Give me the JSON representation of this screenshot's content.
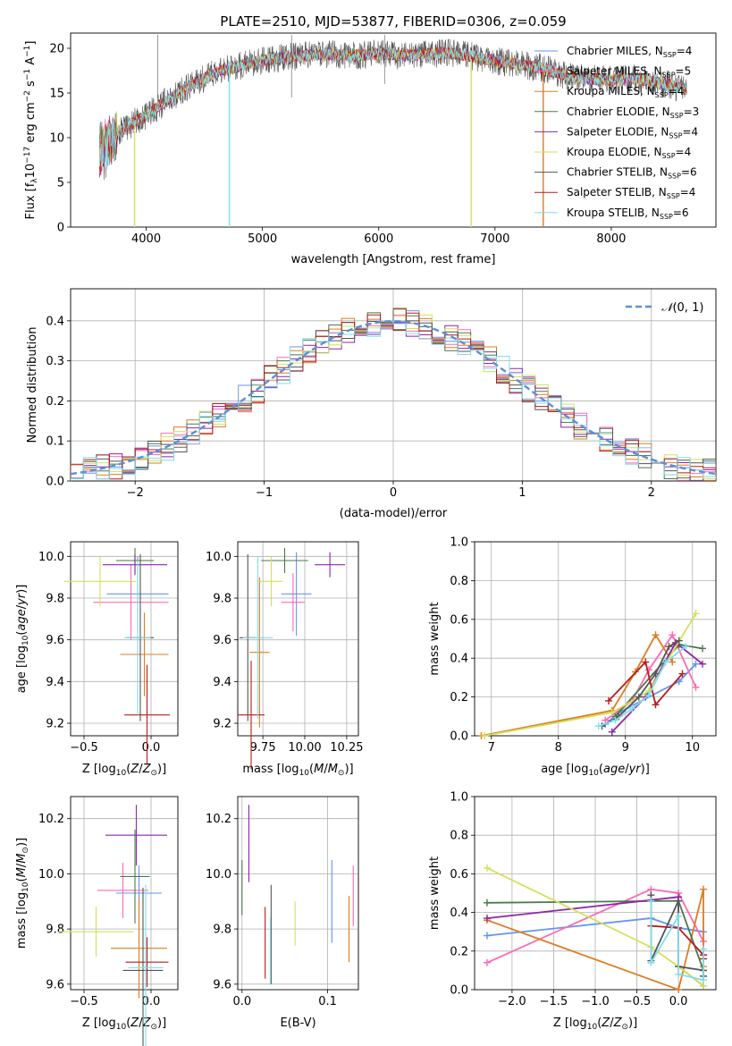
{
  "colors": {
    "c0": "#6495ed",
    "c1": "#ff69b4",
    "c2": "#e07b20",
    "c3": "#4a7a4a",
    "c4": "#8e24aa",
    "c5": "#d4e157",
    "c6": "#555555",
    "c7": "#b71c1c",
    "c8": "#80deea",
    "normal": "#5b8fd6"
  },
  "chart_data": [
    {
      "type": "line",
      "panel": "spectrum",
      "title": "PLATE=2510, MJD=53877, FIBERID=0306, z=0.059",
      "xlabel": "wavelength [Angstrom, rest frame]",
      "ylabel": "Flux [f_λ10^-17 erg cm^-2 s^-1 A^-1]",
      "xlim": [
        3350,
        8900
      ],
      "ylim": [
        0,
        21.7
      ],
      "xticks": [
        4000,
        5000,
        6000,
        7000,
        8000
      ],
      "yticks": [
        0,
        5,
        10,
        15,
        20
      ],
      "continuum": {
        "x": [
          3600,
          3800,
          4000,
          4200,
          4400,
          4600,
          4800,
          5000,
          5200,
          5400,
          5600,
          5800,
          6000,
          6200,
          6400,
          6600,
          6800,
          7000,
          7200,
          7400,
          7600,
          7800,
          8000,
          8200,
          8400,
          8600
        ],
        "y": [
          8.5,
          11.0,
          12.5,
          14.3,
          16.0,
          17.3,
          18.0,
          18.6,
          19.0,
          19.2,
          19.3,
          19.2,
          19.4,
          19.2,
          19.3,
          19.5,
          19.1,
          18.6,
          18.2,
          17.8,
          17.0,
          16.6,
          16.4,
          16.6,
          16.3,
          15.5
        ]
      },
      "legend": [
        {
          "name": "Chabrier MILES",
          "nssp": "4"
        },
        {
          "name": "Salpeter MILES",
          "nssp": "5"
        },
        {
          "name": "Kroupa MILES",
          "nssp": "4"
        },
        {
          "name": "Chabrier ELODIE",
          "nssp": "3"
        },
        {
          "name": "Salpeter ELODIE",
          "nssp": "4"
        },
        {
          "name": "Kroupa ELODIE",
          "nssp": "4"
        },
        {
          "name": "Chabrier STELIB",
          "nssp": "6"
        },
        {
          "name": "Salpeter STELIB",
          "nssp": "4"
        },
        {
          "name": "Kroupa STELIB",
          "nssp": "6"
        }
      ],
      "legend_position": "right"
    },
    {
      "type": "area",
      "panel": "residuals",
      "xlabel": "(data-model)/error",
      "ylabel": "Normed distribution",
      "xlim": [
        -2.5,
        2.5
      ],
      "ylim": [
        0,
        0.48
      ],
      "xticks": [
        -2,
        -1,
        0,
        1,
        2
      ],
      "yticks": [
        0.0,
        0.1,
        0.2,
        0.3,
        0.4
      ],
      "bin_width": 0.1,
      "legend": "N(0,1)",
      "legend_position": "top-right",
      "grid": true
    },
    {
      "type": "scatter",
      "panel": "age-vs-Z",
      "xlabel": "Z [log10(Z/Z⊙)]",
      "ylabel": "age [log10(age/yr)]",
      "xlim": [
        -0.6,
        0.2
      ],
      "ylim": [
        9.14,
        10.07
      ],
      "xticks": [
        -0.5,
        0.0
      ],
      "yticks": [
        9.2,
        9.4,
        9.6,
        9.8,
        10.0
      ],
      "points": [
        {
          "x": -0.1,
          "xerr": 0.23,
          "y": 9.82,
          "yerr": 0.18
        },
        {
          "x": -0.15,
          "xerr": 0.28,
          "y": 9.78,
          "yerr": 0.18
        },
        {
          "x": -0.05,
          "xerr": 0.18,
          "y": 9.53,
          "yerr": 0.2
        },
        {
          "x": -0.12,
          "xerr": 0.14,
          "y": 9.98,
          "yerr": 0.06
        },
        {
          "x": -0.12,
          "xerr": 0.24,
          "y": 9.96,
          "yerr": 0.05
        },
        {
          "x": -0.38,
          "xerr": 0.27,
          "y": 9.88,
          "yerr": 0.12
        },
        {
          "x": -0.08,
          "xerr": 0.1,
          "y": 9.61,
          "yerr": 0.4
        },
        {
          "x": -0.03,
          "xerr": 0.17,
          "y": 9.24,
          "yerr": 0.24
        },
        {
          "x": -0.1,
          "xerr": 0.1,
          "y": 9.61,
          "yerr": 0.37
        }
      ],
      "grid": true
    },
    {
      "type": "scatter",
      "panel": "age-vs-mass",
      "xlabel": "mass [log10(M/M⊙)]",
      "ylabel": "",
      "xlim": [
        9.6,
        10.32
      ],
      "ylim": [
        9.14,
        10.07
      ],
      "xticks": [
        9.75,
        10.0,
        10.25
      ],
      "yticks": [
        9.2,
        9.4,
        9.6,
        9.8,
        10.0
      ],
      "points": [
        {
          "x": 9.95,
          "xerr": 0.09,
          "y": 9.82,
          "yerr": 0.2
        },
        {
          "x": 9.93,
          "xerr": 0.07,
          "y": 9.78,
          "yerr": 0.14
        },
        {
          "x": 9.73,
          "xerr": 0.06,
          "y": 9.54,
          "yerr": 0.36
        },
        {
          "x": 9.88,
          "xerr": 0.14,
          "y": 9.98,
          "yerr": 0.06
        },
        {
          "x": 10.15,
          "xerr": 0.09,
          "y": 9.96,
          "yerr": 0.06
        },
        {
          "x": 9.8,
          "xerr": 0.07,
          "y": 9.88,
          "yerr": 0.12
        },
        {
          "x": 9.66,
          "xerr": 0.05,
          "y": 9.61,
          "yerr": 0.4
        },
        {
          "x": 9.68,
          "xerr": 0.08,
          "y": 9.24,
          "yerr": 0.26
        },
        {
          "x": 9.72,
          "xerr": 0.09,
          "y": 9.61,
          "yerr": 0.39
        }
      ],
      "grid": true
    },
    {
      "type": "line",
      "panel": "mass-weight-vs-age",
      "xlabel": "age [log10(age/yr)]",
      "ylabel": "mass weight",
      "xlim": [
        6.75,
        10.35
      ],
      "ylim": [
        0,
        1
      ],
      "xticks": [
        7,
        8,
        9,
        10
      ],
      "yticks": [
        0.0,
        0.2,
        0.4,
        0.6,
        0.8,
        1.0
      ],
      "series": [
        {
          "x": [
            8.7,
            8.9,
            9.8,
            10.05
          ],
          "y": [
            0.06,
            0.12,
            0.28,
            0.37
          ]
        },
        {
          "x": [
            8.7,
            9.1,
            9.35,
            9.7,
            10.05
          ],
          "y": [
            0.08,
            0.18,
            0.34,
            0.52,
            0.25
          ]
        },
        {
          "x": [
            6.85,
            8.8,
            9.15,
            9.45,
            9.7
          ],
          "y": [
            0.0,
            0.13,
            0.33,
            0.52,
            0.38
          ]
        },
        {
          "x": [
            8.85,
            9.8,
            10.15
          ],
          "y": [
            0.1,
            0.47,
            0.45
          ]
        },
        {
          "x": [
            8.8,
            9.3,
            9.75,
            10.15
          ],
          "y": [
            0.02,
            0.2,
            0.48,
            0.37
          ]
        },
        {
          "x": [
            6.9,
            8.8,
            9.35,
            10.05
          ],
          "y": [
            0.0,
            0.12,
            0.23,
            0.63
          ]
        },
        {
          "x": [
            8.65,
            8.9,
            9.2,
            9.45,
            9.65,
            9.8
          ],
          "y": [
            0.05,
            0.1,
            0.2,
            0.32,
            0.46,
            0.49
          ]
        },
        {
          "x": [
            8.75,
            9.3,
            9.45,
            9.85
          ],
          "y": [
            0.18,
            0.38,
            0.16,
            0.32
          ]
        },
        {
          "x": [
            8.6,
            8.85,
            9.1,
            9.35,
            9.6,
            9.9
          ],
          "y": [
            0.05,
            0.08,
            0.14,
            0.21,
            0.38,
            0.46
          ]
        }
      ],
      "grid": true
    },
    {
      "type": "scatter",
      "panel": "mass-vs-Z",
      "xlabel": "Z [log10(Z/Z⊙)]",
      "ylabel": "mass [log10(M/M⊙)]",
      "xlim": [
        -0.6,
        0.2
      ],
      "ylim": [
        9.58,
        10.28
      ],
      "xticks": [
        -0.5,
        0.0
      ],
      "yticks": [
        9.6,
        9.8,
        10.0,
        10.2
      ],
      "points": [
        {
          "x": -0.09,
          "xerr": 0.17,
          "y": 9.93,
          "yerr": 0.1
        },
        {
          "x": -0.21,
          "xerr": 0.19,
          "y": 9.94,
          "yerr": 0.1
        },
        {
          "x": -0.09,
          "xerr": 0.21,
          "y": 9.73,
          "yerr": 0.18
        },
        {
          "x": -0.12,
          "xerr": 0.11,
          "y": 9.99,
          "yerr": 0.17
        },
        {
          "x": -0.11,
          "xerr": 0.23,
          "y": 10.14,
          "yerr": 0.11
        },
        {
          "x": -0.41,
          "xerr": 0.28,
          "y": 9.79,
          "yerr": 0.09
        },
        {
          "x": -0.06,
          "xerr": 0.15,
          "y": 9.65,
          "yerr": 0.3
        },
        {
          "x": -0.03,
          "xerr": 0.16,
          "y": 9.68,
          "yerr": 0.09
        },
        {
          "x": -0.04,
          "xerr": 0.13,
          "y": 9.66,
          "yerr": 0.3
        }
      ],
      "grid": true
    },
    {
      "type": "scatter",
      "panel": "mass-vs-EBV",
      "xlabel": "E(B-V)",
      "ylabel": "",
      "xlim": [
        -0.005,
        0.136
      ],
      "ylim": [
        9.58,
        10.28
      ],
      "xticks": [
        0.0,
        0.1
      ],
      "yticks": [
        9.6,
        9.8,
        10.0,
        10.2
      ],
      "points": [
        {
          "x": 0.105,
          "y": 9.9,
          "yerr": 0.15
        },
        {
          "x": 0.13,
          "y": 9.92,
          "yerr": 0.11
        },
        {
          "x": 0.125,
          "y": 9.8,
          "yerr": 0.12
        },
        {
          "x": 0.0,
          "y": 9.95,
          "yerr": 0.1
        },
        {
          "x": 0.008,
          "y": 10.11,
          "yerr": 0.14
        },
        {
          "x": 0.062,
          "y": 9.82,
          "yerr": 0.08
        },
        {
          "x": 0.034,
          "y": 9.78,
          "yerr": 0.18
        },
        {
          "x": 0.027,
          "y": 9.75,
          "yerr": 0.13
        },
        {
          "x": 0.033,
          "y": 9.72,
          "yerr": 0.12
        }
      ],
      "grid": true
    },
    {
      "type": "line",
      "panel": "mass-weight-vs-Z",
      "xlabel": "Z [log10(Z/Z⊙)]",
      "ylabel": "mass weight",
      "xlim": [
        -2.45,
        0.45
      ],
      "ylim": [
        0,
        1
      ],
      "xticks": [
        -2.0,
        -1.5,
        -1.0,
        -0.5,
        0.0
      ],
      "yticks": [
        0.0,
        0.2,
        0.4,
        0.6,
        0.8,
        1.0
      ],
      "series": [
        {
          "x": [
            -2.3,
            -0.33,
            0.0,
            0.3
          ],
          "y": [
            0.28,
            0.37,
            0.32,
            0.3
          ]
        },
        {
          "x": [
            -2.3,
            -0.33,
            0.0,
            0.3
          ],
          "y": [
            0.14,
            0.52,
            0.5,
            0.25
          ]
        },
        {
          "x": [
            -2.3,
            0.0,
            0.3,
            0.3
          ],
          "y": [
            0.36,
            0.0,
            0.52,
            0.12
          ]
        },
        {
          "x": [
            -2.3,
            0.0,
            0.3
          ],
          "y": [
            0.45,
            0.46,
            0.1
          ]
        },
        {
          "x": [
            -2.3,
            0.0,
            0.0,
            0.3
          ],
          "y": [
            0.37,
            0.48,
            0.12,
            0.02
          ]
        },
        {
          "x": [
            -2.3,
            -0.33,
            0.0,
            0.3
          ],
          "y": [
            0.63,
            0.22,
            0.12,
            0.02
          ]
        },
        {
          "x": [
            -0.33,
            -0.33,
            0.0,
            0.0,
            0.3,
            0.3
          ],
          "y": [
            0.49,
            0.15,
            0.46,
            0.12,
            0.1,
            0.07
          ]
        },
        {
          "x": [
            -0.33,
            0.0,
            0.3,
            0.3
          ],
          "y": [
            0.33,
            0.32,
            0.18,
            0.16
          ]
        },
        {
          "x": [
            -0.33,
            -0.33,
            0.0,
            0.0,
            0.3,
            0.3
          ],
          "y": [
            0.46,
            0.14,
            0.38,
            0.08,
            0.05,
            0.21
          ]
        }
      ],
      "grid": true
    }
  ]
}
